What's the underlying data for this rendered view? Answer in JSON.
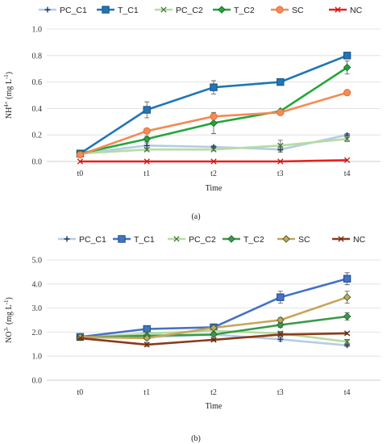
{
  "chart_data": [
    {
      "type": "line",
      "panel_label": "(a)",
      "xlabel": "Time",
      "ylabel_main": "NH",
      "ylabel_sup": "4+",
      "ylabel_unit_pre": " (mg L",
      "ylabel_unit_sup": "-1",
      "ylabel_unit_post": ")",
      "categories": [
        "t0",
        "t1",
        "t2",
        "t3",
        "t4"
      ],
      "ylim": [
        0.0,
        1.0
      ],
      "yticks": [
        "0.0",
        "0.2",
        "0.4",
        "0.6",
        "0.8",
        "1.0"
      ],
      "legend_position": "top",
      "series": [
        {
          "name": "PC_C1",
          "color": "#b4cde6",
          "marker": "plus",
          "values": [
            0.06,
            0.12,
            0.11,
            0.09,
            0.2
          ],
          "err": [
            0.01,
            0.02,
            0.01,
            0.02,
            0.01
          ]
        },
        {
          "name": "T_C1",
          "color": "#1f77b4",
          "marker": "square",
          "values": [
            0.06,
            0.39,
            0.56,
            0.6,
            0.8
          ],
          "err": [
            0.01,
            0.06,
            0.05,
            0.0,
            0.0
          ]
        },
        {
          "name": "PC_C2",
          "color": "#b6dca3",
          "marker": "x",
          "values": [
            0.06,
            0.09,
            0.09,
            0.12,
            0.17
          ],
          "err": [
            0.01,
            0.01,
            0.01,
            0.04,
            0.02
          ]
        },
        {
          "name": "T_C2",
          "color": "#21a63a",
          "marker": "diamond",
          "values": [
            0.06,
            0.17,
            0.29,
            0.38,
            0.71
          ],
          "err": [
            0.01,
            0.02,
            0.08,
            0.0,
            0.05
          ]
        },
        {
          "name": "SC",
          "color": "#f58a55",
          "marker": "circle",
          "values": [
            0.05,
            0.23,
            0.34,
            0.37,
            0.52
          ],
          "err": [
            0.01,
            0.0,
            0.02,
            0.0,
            0.0
          ]
        },
        {
          "name": "NC",
          "color": "#e8201f",
          "marker": "x",
          "values": [
            0.0,
            0.0,
            0.0,
            0.0,
            0.01
          ],
          "err": [
            0.0,
            0.0,
            0.0,
            0.0,
            0.0
          ]
        }
      ]
    },
    {
      "type": "line",
      "panel_label": "(b)",
      "xlabel": "Time",
      "ylabel_main": "NO",
      "ylabel_sup": "3-",
      "ylabel_unit_pre": " (mg L",
      "ylabel_unit_sup": "-1",
      "ylabel_unit_post": ")",
      "categories": [
        "t0",
        "t1",
        "t2",
        "t3",
        "t4"
      ],
      "ylim": [
        0.0,
        5.0
      ],
      "yticks": [
        "0.0",
        "1.0",
        "2.0",
        "3.0",
        "4.0",
        "5.0"
      ],
      "legend_position": "top",
      "series": [
        {
          "name": "PC_C1",
          "color": "#b4cde6",
          "marker": "plus",
          "values": [
            1.76,
            1.8,
            1.9,
            1.7,
            1.45
          ],
          "err": [
            0.0,
            0.05,
            0.0,
            0.08,
            0.05
          ]
        },
        {
          "name": "T_C1",
          "color": "#4472c4",
          "marker": "square",
          "values": [
            1.8,
            2.13,
            2.2,
            3.45,
            4.22
          ],
          "err": [
            0.0,
            0.1,
            0.0,
            0.25,
            0.25
          ]
        },
        {
          "name": "PC_C2",
          "color": "#b6dca3",
          "marker": "x",
          "values": [
            1.76,
            1.95,
            2.05,
            1.95,
            1.6
          ],
          "err": [
            0.0,
            0.05,
            0.0,
            0.08,
            0.1
          ]
        },
        {
          "name": "T_C2",
          "color": "#3a9a4a",
          "marker": "diamond",
          "values": [
            1.78,
            1.85,
            1.9,
            2.3,
            2.65
          ],
          "err": [
            0.0,
            0.05,
            0.0,
            0.1,
            0.15
          ]
        },
        {
          "name": "SC",
          "color": "#c8a45a",
          "marker": "diamond",
          "values": [
            1.8,
            1.75,
            2.18,
            2.5,
            3.45
          ],
          "err": [
            0.0,
            0.05,
            0.0,
            0.1,
            0.25
          ]
        },
        {
          "name": "NC",
          "color": "#8b3a1a",
          "marker": "x",
          "values": [
            1.75,
            1.48,
            1.68,
            1.9,
            1.95
          ],
          "err": [
            0.0,
            0.08,
            0.05,
            0.05,
            0.05
          ]
        }
      ]
    }
  ]
}
